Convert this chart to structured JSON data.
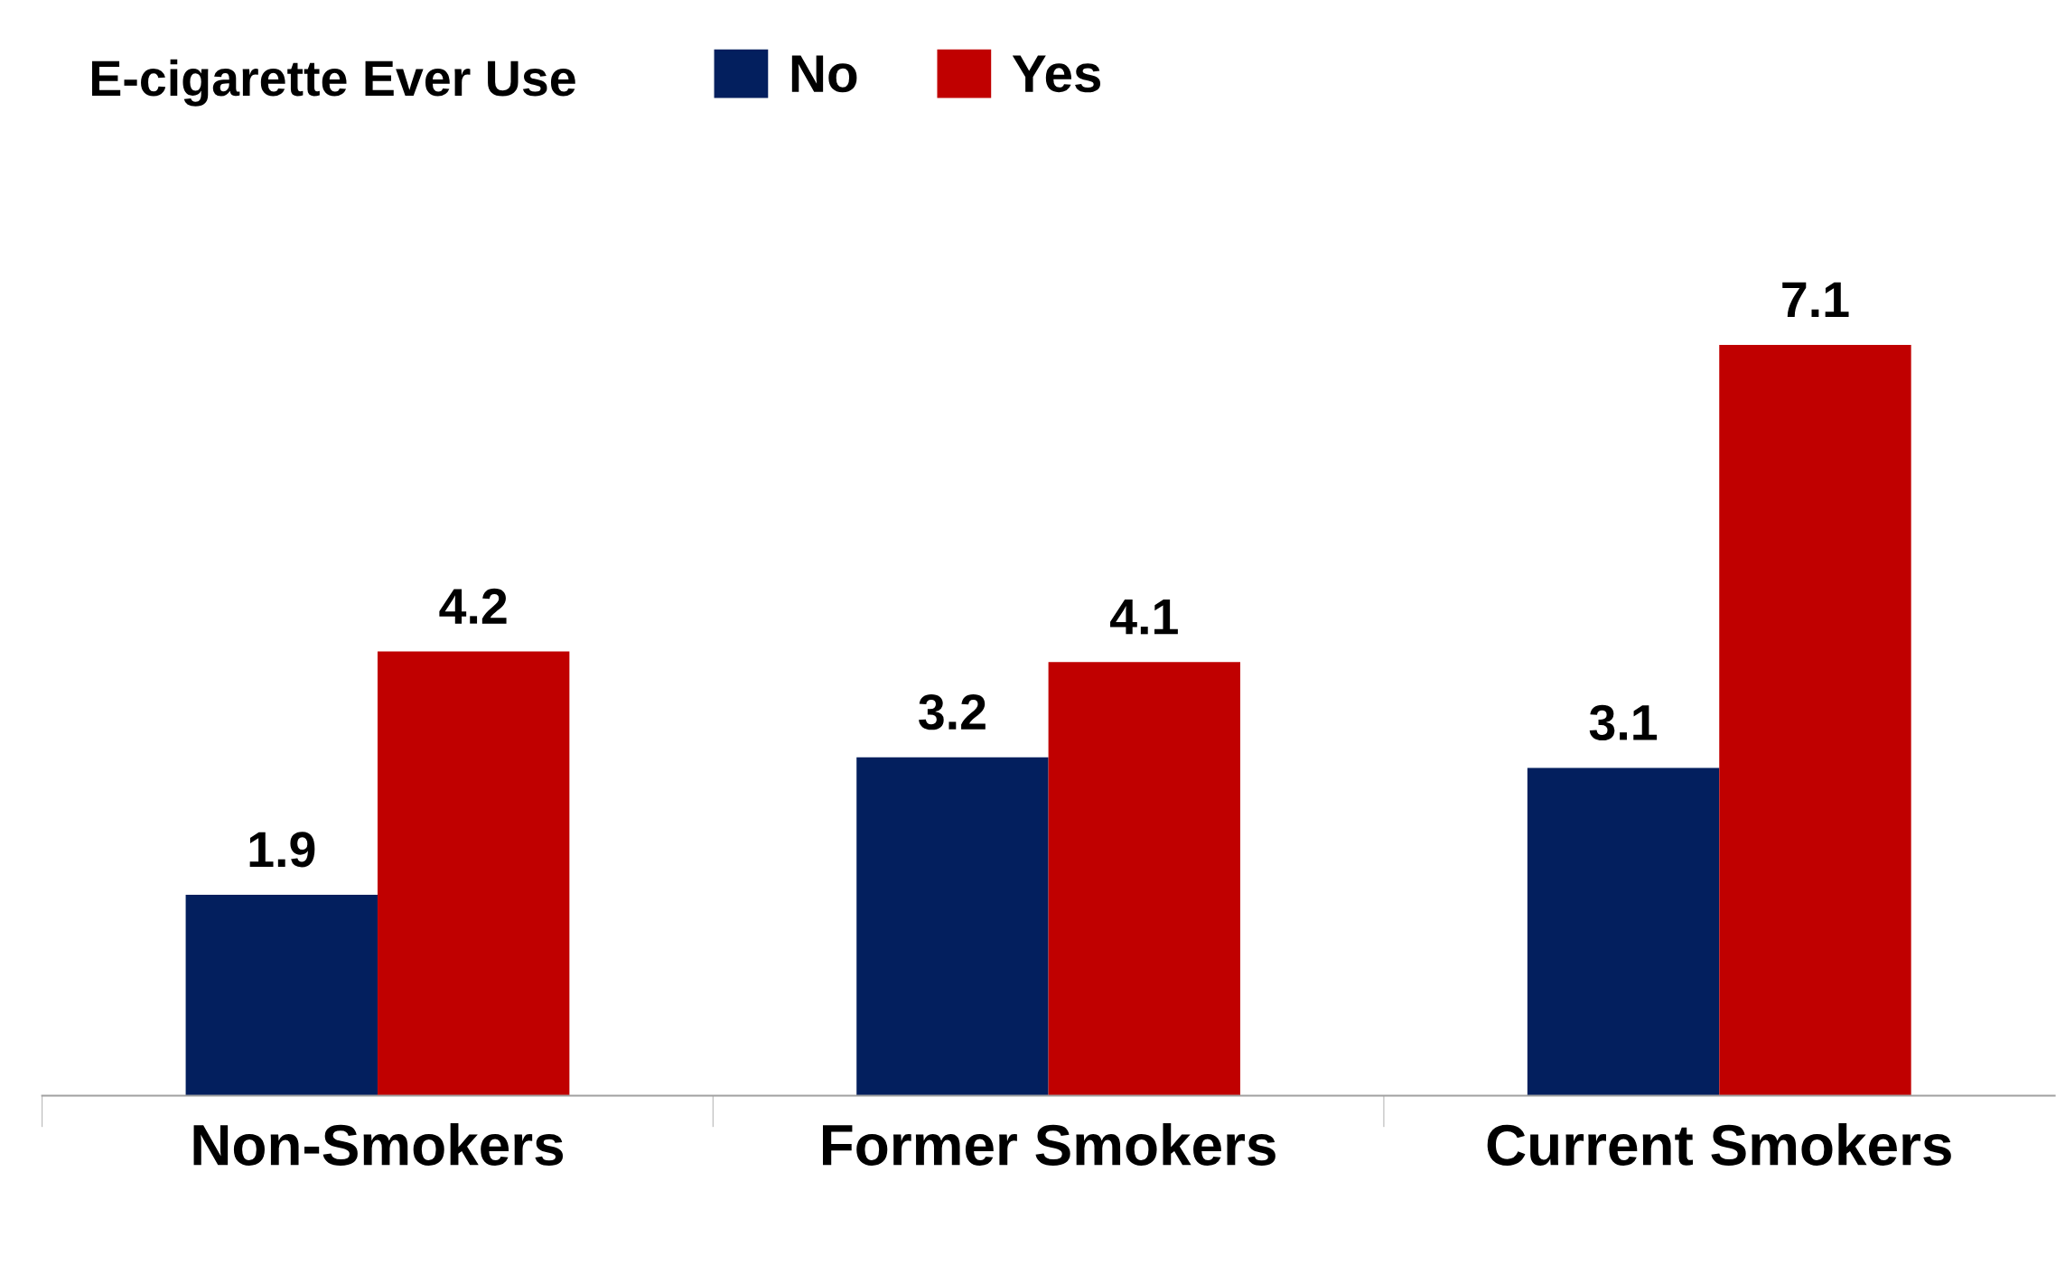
{
  "chart_data": {
    "type": "bar",
    "legend_title": "E-cigarette Ever Use",
    "categories": [
      "Non-Smokers",
      "Former Smokers",
      "Current Smokers"
    ],
    "series": [
      {
        "name": "No",
        "color": "#031f5e",
        "values": [
          1.9,
          3.2,
          3.1
        ]
      },
      {
        "name": "Yes",
        "color": "#c00000",
        "values": [
          4.2,
          4.1,
          7.1
        ]
      }
    ],
    "data_labels": true,
    "legend": "top",
    "grid": false,
    "tick_labels": "x"
  }
}
